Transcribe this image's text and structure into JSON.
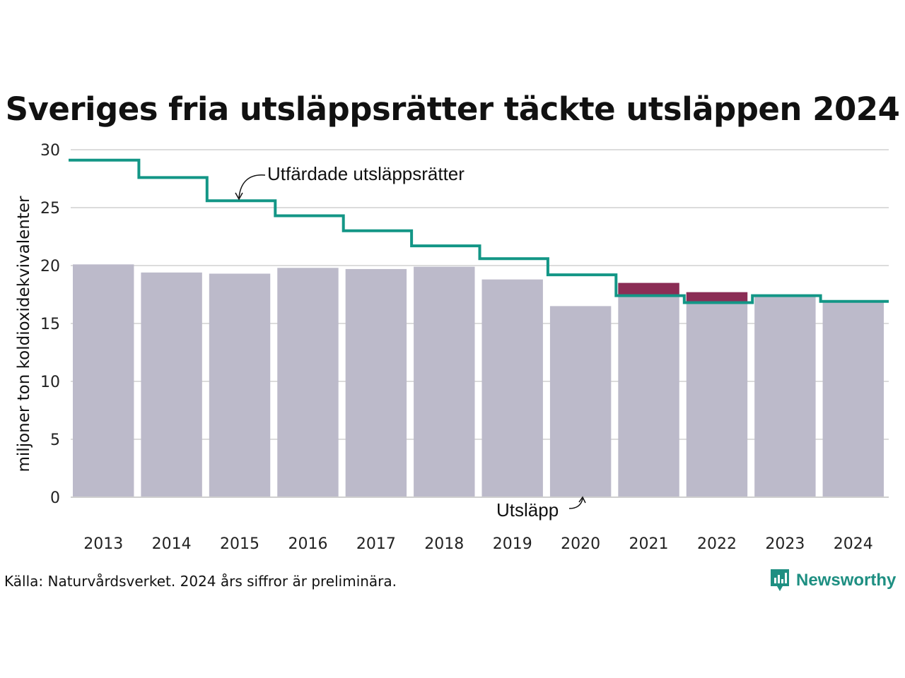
{
  "colors": {
    "bar": "#bcbaca",
    "excess": "#8b2d55",
    "line": "#139686",
    "grid": "#dcdcdc",
    "brand": "#1e8f82"
  },
  "source": "Källa: Naturvårdsverket. 2024 års siffror är preliminära.",
  "brand": {
    "name": "Newsworthy",
    "logo_icon": "bar-chart-pin-icon"
  },
  "chart_data": {
    "type": "bar",
    "title": "Sveriges fria utsläppsrätter täckte utsläppen 2024",
    "ylabel": "miljoner ton koldioxidekvivalenter",
    "ylim": [
      0,
      30
    ],
    "yticks": [
      0,
      5,
      10,
      15,
      20,
      25,
      30
    ],
    "grid": true,
    "categories": [
      "2013",
      "2014",
      "2015",
      "2016",
      "2017",
      "2018",
      "2019",
      "2020",
      "2021",
      "2022",
      "2023",
      "2024"
    ],
    "series": [
      {
        "name": "Utsläpp",
        "type": "bar",
        "values": [
          20.1,
          19.4,
          19.3,
          19.8,
          19.7,
          19.9,
          18.8,
          16.5,
          18.5,
          17.7,
          17.3,
          16.8
        ]
      },
      {
        "name": "Utfärdade utsläppsrätter",
        "type": "step",
        "values": [
          29.1,
          27.6,
          25.6,
          24.3,
          23.0,
          21.7,
          20.6,
          19.2,
          17.4,
          16.8,
          17.4,
          16.9
        ]
      }
    ]
  }
}
